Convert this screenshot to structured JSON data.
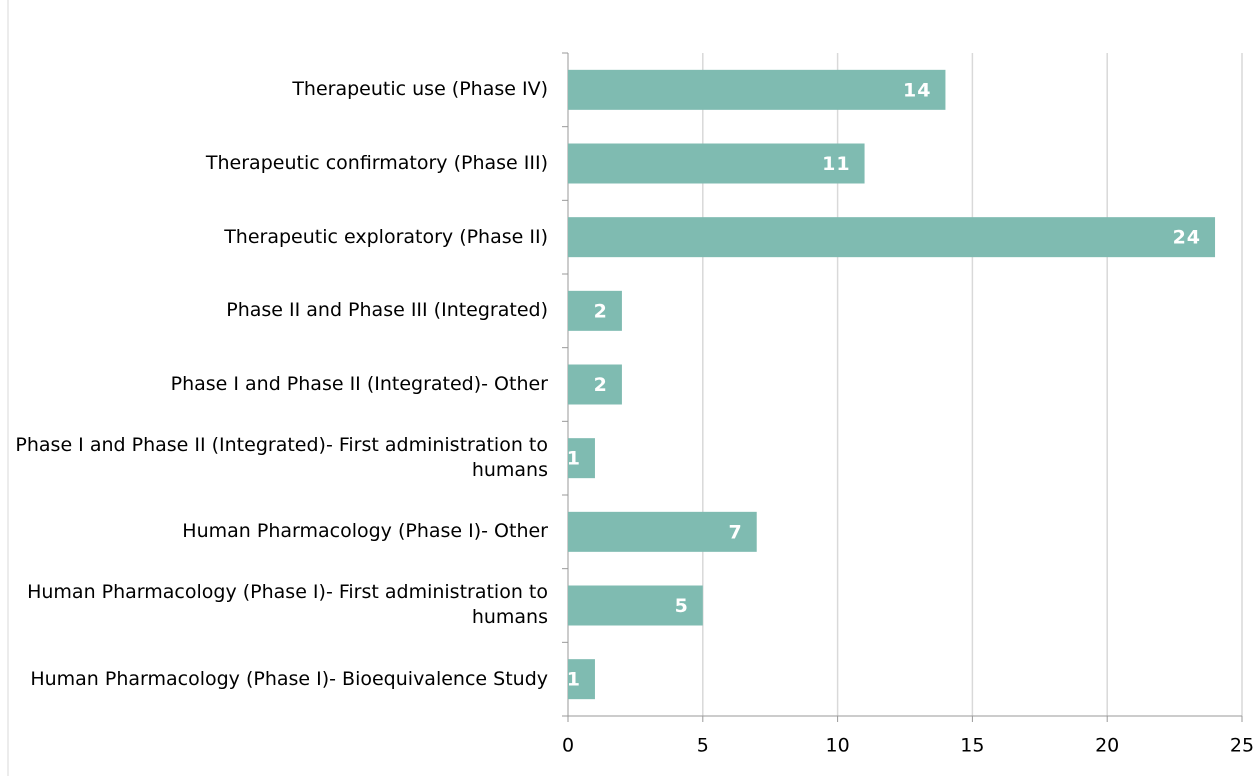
{
  "chart_data": {
    "type": "bar",
    "orientation": "horizontal",
    "categories": [
      "Therapeutic use (Phase IV)",
      "Therapeutic confirmatory (Phase III)",
      "Therapeutic exploratory (Phase II)",
      "Phase II and Phase III (Integrated)",
      "Phase I and Phase II (Integrated)- Other",
      "Phase I and Phase II (Integrated)- First administration to humans",
      "Human Pharmacology (Phase I)- Other",
      "Human Pharmacology (Phase I)- First administration to humans",
      "Human Pharmacology (Phase I)- Bioequivalence Study"
    ],
    "values": [
      14,
      11,
      24,
      2,
      2,
      1,
      7,
      5,
      1
    ],
    "color": "#7fbbb1",
    "xlim": [
      0,
      25
    ],
    "xticks": [
      0,
      5,
      10,
      15,
      20,
      25
    ],
    "grid": true
  }
}
